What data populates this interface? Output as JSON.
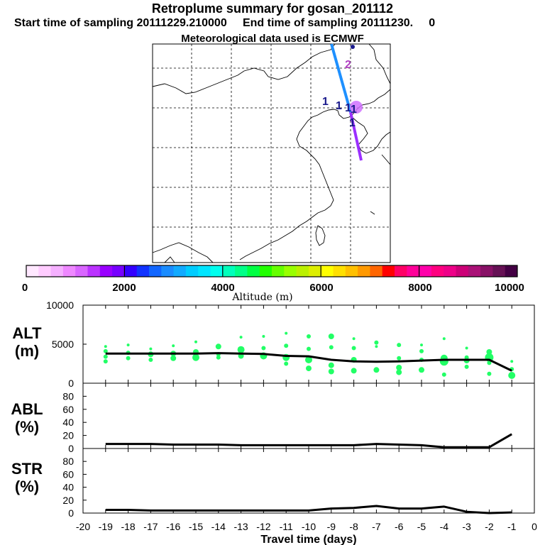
{
  "header": {
    "title": "Retroplume summary for gosan_201112",
    "start_label": "Start time of sampling 20111229.210000",
    "end_label": "End time of sampling 20111230.     0",
    "met_label": "Meteorological data used is ECMWF"
  },
  "map": {
    "trajectory_labels": [
      "2",
      "1",
      "1",
      "1",
      "1",
      "1"
    ],
    "colors": {
      "upper_segment": "#1e90ff",
      "lower_segment": "#9b30ff",
      "release_point": "#d070ff",
      "label": "#1a1a8c"
    }
  },
  "colorbar": {
    "colors": [
      "#ffe8ff",
      "#ffccff",
      "#f5b0ff",
      "#ee88ff",
      "#d966ff",
      "#bb33ff",
      "#9900ff",
      "#7700ff",
      "#3300ff",
      "#1133ff",
      "#1166ff",
      "#1a8cff",
      "#11aaff",
      "#00ccff",
      "#00e5ff",
      "#00ffee",
      "#00ffbb",
      "#00ff88",
      "#00ff44",
      "#22ff00",
      "#66ff00",
      "#99ff00",
      "#bbf000",
      "#ddee00",
      "#ffff00",
      "#ffe000",
      "#ffc000",
      "#ff9900",
      "#ff6600",
      "#ff0000",
      "#ff0066",
      "#ff0099",
      "#ff00aa",
      "#ff0080",
      "#ee0088",
      "#cc0077",
      "#aa1177",
      "#881166",
      "#661155",
      "#440044"
    ],
    "tick_labels": [
      "0",
      "2000",
      "4000",
      "6000",
      "8000",
      "10000"
    ],
    "label": "Altitude (m)"
  },
  "chart_data": [
    {
      "type": "line",
      "title": "ALT",
      "ylabel": "ALT\n(m)",
      "y_tick_labels": [
        "10000",
        "5000",
        "0"
      ],
      "ylim": [
        0,
        10000
      ],
      "xlim": [
        -20,
        0
      ],
      "x": [
        -19,
        -18,
        -17,
        -16,
        -15,
        -14,
        -13,
        -12,
        -11,
        -10,
        -9,
        -8,
        -7,
        -6,
        -5,
        -4,
        -3,
        -2,
        -1
      ],
      "series": [
        {
          "name": "median altitude",
          "values": [
            3800,
            3800,
            3800,
            3800,
            3800,
            3850,
            3800,
            3750,
            3500,
            3450,
            3000,
            2800,
            2750,
            2800,
            2900,
            3000,
            3000,
            3000,
            1600
          ]
        }
      ],
      "scatter_points": [
        [
          -19,
          4700,
          2
        ],
        [
          -19,
          4100,
          3
        ],
        [
          -19,
          3400,
          3
        ],
        [
          -19,
          2800,
          3
        ],
        [
          -18,
          4900,
          2
        ],
        [
          -18,
          3900,
          3
        ],
        [
          -18,
          3200,
          3
        ],
        [
          -17,
          4400,
          2
        ],
        [
          -17,
          3700,
          4
        ],
        [
          -17,
          3000,
          3
        ],
        [
          -16,
          4800,
          2
        ],
        [
          -16,
          3800,
          4
        ],
        [
          -16,
          3200,
          4
        ],
        [
          -15,
          5300,
          2
        ],
        [
          -15,
          4000,
          4
        ],
        [
          -15,
          3300,
          5
        ],
        [
          -14,
          4700,
          4
        ],
        [
          -14,
          3700,
          3
        ],
        [
          -14,
          3300,
          3
        ],
        [
          -13,
          5900,
          2
        ],
        [
          -13,
          4300,
          5
        ],
        [
          -13,
          3500,
          4
        ],
        [
          -12,
          6000,
          2
        ],
        [
          -12,
          4500,
          3
        ],
        [
          -12,
          3500,
          5
        ],
        [
          -11,
          6400,
          2
        ],
        [
          -11,
          4800,
          3
        ],
        [
          -11,
          3300,
          5
        ],
        [
          -11,
          2500,
          3
        ],
        [
          -10,
          6000,
          3
        ],
        [
          -10,
          4400,
          3
        ],
        [
          -10,
          3000,
          5
        ],
        [
          -10,
          1900,
          4
        ],
        [
          -9,
          6000,
          4
        ],
        [
          -9,
          4600,
          3
        ],
        [
          -9,
          2300,
          4
        ],
        [
          -9,
          1500,
          4
        ],
        [
          -8,
          5700,
          2
        ],
        [
          -8,
          4500,
          3
        ],
        [
          -8,
          3000,
          4
        ],
        [
          -8,
          1600,
          4
        ],
        [
          -7,
          5200,
          3
        ],
        [
          -7,
          4700,
          2
        ],
        [
          -7,
          1700,
          4
        ],
        [
          -6,
          4900,
          3
        ],
        [
          -6,
          3200,
          3
        ],
        [
          -6,
          2000,
          4
        ],
        [
          -6,
          1400,
          4
        ],
        [
          -5,
          4900,
          2
        ],
        [
          -5,
          4100,
          3
        ],
        [
          -5,
          3000,
          3
        ],
        [
          -5,
          1700,
          4
        ],
        [
          -4,
          5700,
          2
        ],
        [
          -4,
          3200,
          5
        ],
        [
          -4,
          2800,
          6
        ],
        [
          -4,
          1100,
          3
        ],
        [
          -3,
          4500,
          2
        ],
        [
          -3,
          3300,
          3
        ],
        [
          -3,
          2900,
          4
        ],
        [
          -3,
          2100,
          3
        ],
        [
          -2,
          4000,
          4
        ],
        [
          -2,
          3300,
          6
        ],
        [
          -2,
          2600,
          3
        ],
        [
          -2,
          1200,
          3
        ],
        [
          -1,
          2800,
          2
        ],
        [
          -1,
          1800,
          3
        ],
        [
          -1,
          1000,
          5
        ]
      ],
      "point_color": "#22ff66"
    },
    {
      "type": "line",
      "title": "ABL",
      "ylabel": "ABL\n(%)",
      "y_tick_labels": [
        "80",
        "60",
        "40",
        "20",
        "0"
      ],
      "ylim": [
        0,
        100
      ],
      "xlim": [
        -20,
        0
      ],
      "x": [
        -19,
        -18,
        -17,
        -16,
        -15,
        -14,
        -13,
        -12,
        -11,
        -10,
        -9,
        -8,
        -7,
        -6,
        -5,
        -4,
        -3,
        -2,
        -1
      ],
      "series": [
        {
          "name": "ABL fraction",
          "values": [
            7,
            7,
            7,
            6,
            6,
            6,
            5,
            5,
            5,
            5,
            5,
            5,
            7,
            6,
            5,
            2,
            2,
            2,
            22
          ]
        }
      ]
    },
    {
      "type": "line",
      "title": "STR",
      "ylabel": "STR\n(%)",
      "y_tick_labels": [
        "80",
        "60",
        "40",
        "20",
        "0"
      ],
      "ylim": [
        0,
        100
      ],
      "xlim": [
        -20,
        0
      ],
      "xlabel": "Travel time (days)",
      "x_tick_labels": [
        "-20",
        "-19",
        "-18",
        "-17",
        "-16",
        "-15",
        "-14",
        "-13",
        "-12",
        "-11",
        "-10",
        "-9",
        "-8",
        "-7",
        "-6",
        "-5",
        "-4",
        "-3",
        "-2",
        "-1",
        "0"
      ],
      "x": [
        -19,
        -18,
        -17,
        -16,
        -15,
        -14,
        -13,
        -12,
        -11,
        -10,
        -9,
        -8,
        -7,
        -6,
        -5,
        -4,
        -3,
        -2,
        -1
      ],
      "series": [
        {
          "name": "stratospheric fraction",
          "values": [
            5,
            5,
            4,
            4,
            4,
            4,
            4,
            4,
            4,
            4,
            7,
            8,
            11,
            7,
            7,
            10,
            2,
            0,
            1
          ]
        }
      ]
    }
  ]
}
